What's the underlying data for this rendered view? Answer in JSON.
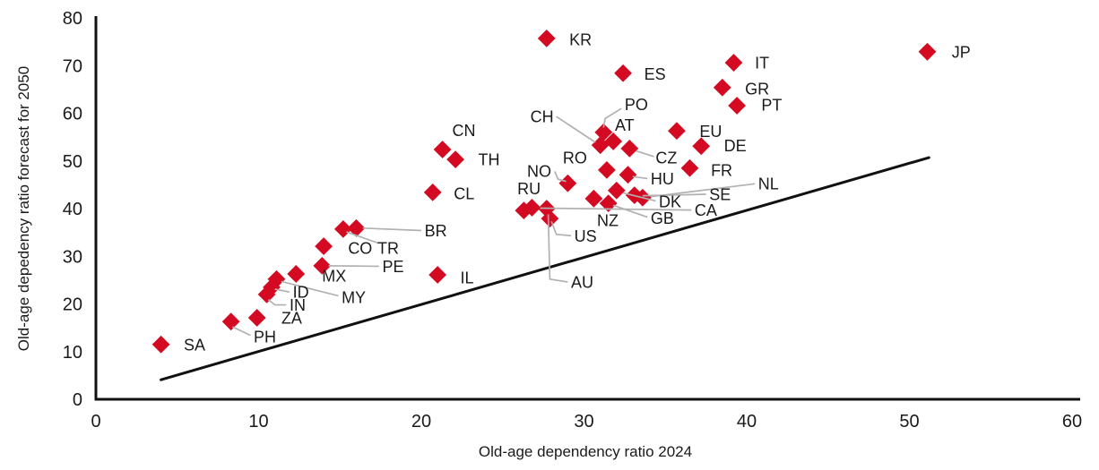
{
  "chart_data": {
    "type": "scatter",
    "xlabel": "Old-age dependency ratio 2024",
    "ylabel": "Old-age depedency ratio forecast for 2050",
    "xlim": [
      0,
      60
    ],
    "ylim": [
      0,
      80
    ],
    "xticks": [
      0,
      10,
      20,
      30,
      40,
      50,
      60
    ],
    "yticks": [
      0,
      10,
      20,
      30,
      40,
      50,
      60,
      70,
      80
    ],
    "grid": false,
    "marker": "diamond",
    "marker_color": "#d40a22",
    "leader_color": "#b1b1b1",
    "axis_color": "#111111",
    "text_color": "#1a1a1a",
    "reference_line": {
      "x1": 4.0,
      "y1": 4.1,
      "x2": 51.2,
      "y2": 50.7
    },
    "points": [
      {
        "code": "SA",
        "x": 4.0,
        "y": 11.5,
        "lx": 5.4,
        "ly": 11.5
      },
      {
        "code": "PH",
        "x": 8.3,
        "y": 16.3,
        "lx": 9.7,
        "ly": 13.1,
        "leader": [
          [
            8.4,
            15.2
          ],
          [
            9.5,
            13.4
          ]
        ]
      },
      {
        "code": "ZA",
        "x": 9.9,
        "y": 17.1,
        "lx": 11.4,
        "ly": 17.1
      },
      {
        "code": "IN",
        "x": 10.5,
        "y": 22.0,
        "lx": 11.9,
        "ly": 19.8,
        "leader": [
          [
            10.6,
            20.9
          ],
          [
            11.0,
            19.8
          ],
          [
            11.7,
            19.8
          ]
        ]
      },
      {
        "code": "ID",
        "x": 10.8,
        "y": 23.5,
        "lx": 12.1,
        "ly": 22.5,
        "leader": [
          [
            11.0,
            23.1
          ],
          [
            11.9,
            22.5
          ]
        ]
      },
      {
        "code": "MY",
        "x": 11.1,
        "y": 25.2,
        "lx": 15.1,
        "ly": 21.4,
        "leader": [
          [
            11.4,
            24.7
          ],
          [
            14.9,
            21.7
          ]
        ]
      },
      {
        "code": "MX",
        "x": 12.3,
        "y": 26.3,
        "lx": 13.9,
        "ly": 25.9
      },
      {
        "code": "PE",
        "x": 13.9,
        "y": 28.0,
        "lx": 17.6,
        "ly": 27.9,
        "leader": [
          [
            14.3,
            28.0
          ],
          [
            17.4,
            27.9
          ]
        ]
      },
      {
        "code": "CO",
        "x": 14.0,
        "y": 32.1,
        "lx": 15.5,
        "ly": 31.7
      },
      {
        "code": "TR",
        "x": 15.2,
        "y": 35.7,
        "lx": 17.3,
        "ly": 31.7,
        "leader": [
          [
            15.4,
            35.1
          ],
          [
            17.4,
            32.7
          ]
        ]
      },
      {
        "code": "BR",
        "x": 16.0,
        "y": 35.9,
        "lx": 20.2,
        "ly": 35.4,
        "leader": [
          [
            16.4,
            35.9
          ],
          [
            20.0,
            35.4
          ]
        ]
      },
      {
        "code": "IL",
        "x": 21.0,
        "y": 26.1,
        "lx": 22.4,
        "ly": 25.5
      },
      {
        "code": "CL",
        "x": 20.7,
        "y": 43.4,
        "lx": 22.0,
        "ly": 43.2
      },
      {
        "code": "CN",
        "x": 21.3,
        "y": 52.4,
        "lx": 21.9,
        "ly": 56.4
      },
      {
        "code": "TH",
        "x": 22.1,
        "y": 50.3,
        "lx": 23.5,
        "ly": 50.3
      },
      {
        "code": "KR",
        "x": 27.7,
        "y": 75.7,
        "lx": 29.1,
        "ly": 75.5
      },
      {
        "code": "ES",
        "x": 32.4,
        "y": 68.4,
        "lx": 33.7,
        "ly": 68.3
      },
      {
        "code": "CH",
        "x": 31.0,
        "y": 53.3,
        "lx": 26.7,
        "ly": 59.3,
        "leader": [
          [
            28.3,
            59.3
          ],
          [
            30.7,
            53.9
          ]
        ]
      },
      {
        "code": "PO",
        "x": 31.2,
        "y": 56.0,
        "lx": 32.5,
        "ly": 61.9,
        "leader": [
          [
            32.3,
            61.0
          ],
          [
            31.3,
            58.9
          ],
          [
            31.2,
            57.0
          ]
        ]
      },
      {
        "code": "AT",
        "x": 31.8,
        "y": 54.1,
        "lx": 31.9,
        "ly": 57.6
      },
      {
        "code": "CZ",
        "x": 32.8,
        "y": 52.6,
        "lx": 34.4,
        "ly": 50.7,
        "leader": [
          [
            33.2,
            52.1
          ],
          [
            34.3,
            50.9
          ]
        ]
      },
      {
        "code": "RO",
        "x": 31.4,
        "y": 48.1,
        "lx": 28.7,
        "ly": 50.7
      },
      {
        "code": "HU",
        "x": 32.7,
        "y": 47.1,
        "lx": 34.1,
        "ly": 46.3,
        "leader": [
          [
            33.0,
            46.7
          ],
          [
            33.9,
            46.3
          ]
        ]
      },
      {
        "code": "NO",
        "x": 29.0,
        "y": 45.3,
        "lx": 26.5,
        "ly": 47.9,
        "leader": [
          [
            28.2,
            47.8
          ],
          [
            28.4,
            46.2
          ],
          [
            28.9,
            45.7
          ]
        ]
      },
      {
        "code": "RU",
        "x": 26.3,
        "y": 39.6,
        "lx": 25.9,
        "ly": 44.2
      },
      {
        "code": "CA",
        "x": 26.8,
        "y": 40.2,
        "lx": 36.8,
        "ly": 39.7,
        "leader": [
          [
            27.3,
            40.1
          ],
          [
            36.6,
            39.7
          ]
        ]
      },
      {
        "code": "AU",
        "x": 27.7,
        "y": 40.0,
        "lx": 29.2,
        "ly": 24.6,
        "leader": [
          [
            27.8,
            38.8
          ],
          [
            27.9,
            25.2
          ],
          [
            29.0,
            24.6
          ]
        ]
      },
      {
        "code": "US",
        "x": 27.9,
        "y": 37.9,
        "lx": 29.4,
        "ly": 34.3,
        "leader": [
          [
            28.0,
            37.3
          ],
          [
            28.3,
            34.6
          ],
          [
            29.2,
            34.3
          ]
        ]
      },
      {
        "code": "NZ",
        "x": 30.6,
        "y": 42.1,
        "lx": 30.8,
        "ly": 37.6
      },
      {
        "code": "GB",
        "x": 31.5,
        "y": 41.1,
        "lx": 34.1,
        "ly": 38.0,
        "leader": [
          [
            31.8,
            40.7
          ],
          [
            33.9,
            38.2
          ]
        ]
      },
      {
        "code": "DK",
        "x": 32.0,
        "y": 43.8,
        "lx": 34.6,
        "ly": 41.5,
        "leader": [
          [
            32.4,
            43.3
          ],
          [
            34.4,
            41.6
          ]
        ]
      },
      {
        "code": "SE",
        "x": 33.1,
        "y": 42.8,
        "lx": 37.7,
        "ly": 43.0,
        "leader": [
          [
            33.6,
            42.7
          ],
          [
            37.5,
            43.0
          ]
        ]
      },
      {
        "code": "NL",
        "x": 33.6,
        "y": 42.3,
        "lx": 40.7,
        "ly": 45.3,
        "leader": [
          [
            34.1,
            42.5
          ],
          [
            40.5,
            45.2
          ]
        ]
      },
      {
        "code": "EU",
        "x": 35.7,
        "y": 56.3,
        "lx": 37.1,
        "ly": 56.2
      },
      {
        "code": "DE",
        "x": 37.2,
        "y": 53.1,
        "lx": 38.6,
        "ly": 53.2
      },
      {
        "code": "FR",
        "x": 36.5,
        "y": 48.5,
        "lx": 37.8,
        "ly": 48.1
      },
      {
        "code": "IT",
        "x": 39.2,
        "y": 70.6,
        "lx": 40.5,
        "ly": 70.6
      },
      {
        "code": "GR",
        "x": 38.5,
        "y": 65.4,
        "lx": 39.9,
        "ly": 65.2
      },
      {
        "code": "PT",
        "x": 39.4,
        "y": 61.6,
        "lx": 40.9,
        "ly": 61.8
      },
      {
        "code": "JP",
        "x": 51.1,
        "y": 72.9,
        "lx": 52.6,
        "ly": 72.9
      }
    ]
  }
}
